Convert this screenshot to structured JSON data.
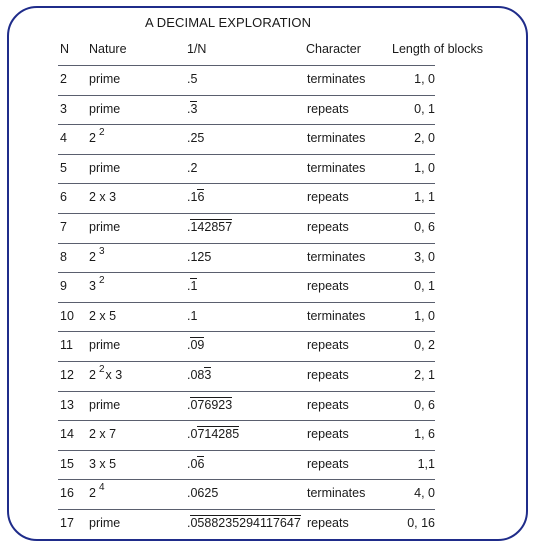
{
  "title": "A DECIMAL EXPLORATION",
  "headers": {
    "n": "N",
    "nature": "Nature",
    "inv": "1/N",
    "character": "Character",
    "length": "Length of blocks"
  },
  "rows": [
    {
      "n": "2",
      "nature": [
        {
          "t": "prime"
        }
      ],
      "inv_plain": ".",
      "inv_rep": "",
      "inv_tail": "5",
      "character": "terminates",
      "length": "1, 0"
    },
    {
      "n": "3",
      "nature": [
        {
          "t": "prime"
        }
      ],
      "inv_plain": ".",
      "inv_rep": "3",
      "inv_tail": "",
      "character": "repeats",
      "length": "0, 1"
    },
    {
      "n": "4",
      "nature": [
        {
          "t": "2"
        },
        {
          "sup": "2"
        }
      ],
      "inv_plain": ".25",
      "inv_rep": "",
      "inv_tail": "",
      "character": "terminates",
      "length": "2, 0"
    },
    {
      "n": "5",
      "nature": [
        {
          "t": "prime"
        }
      ],
      "inv_plain": ".2",
      "inv_rep": "",
      "inv_tail": "",
      "character": "terminates",
      "length": "1, 0"
    },
    {
      "n": "6",
      "nature": [
        {
          "t": "2 x 3"
        }
      ],
      "inv_plain": ".1",
      "inv_rep": "6",
      "inv_tail": "",
      "character": "repeats",
      "length": "1, 1"
    },
    {
      "n": "7",
      "nature": [
        {
          "t": "prime"
        }
      ],
      "inv_plain": ".",
      "inv_rep": "142857",
      "inv_tail": "",
      "character": "repeats",
      "length": "0, 6"
    },
    {
      "n": "8",
      "nature": [
        {
          "t": "2"
        },
        {
          "sup": "3"
        }
      ],
      "inv_plain": ".125",
      "inv_rep": "",
      "inv_tail": "",
      "character": "terminates",
      "length": "3, 0"
    },
    {
      "n": "9",
      "nature": [
        {
          "t": "3"
        },
        {
          "sup": "2"
        }
      ],
      "inv_plain": ".",
      "inv_rep": "1",
      "inv_tail": "",
      "character": "repeats",
      "length": "0, 1"
    },
    {
      "n": "10",
      "nature": [
        {
          "t": "2 x 5"
        }
      ],
      "inv_plain": ".1",
      "inv_rep": "",
      "inv_tail": "",
      "character": "terminates",
      "length": "1, 0"
    },
    {
      "n": "11",
      "nature": [
        {
          "t": "prime"
        }
      ],
      "inv_plain": ".",
      "inv_rep": "09",
      "inv_tail": "",
      "character": "repeats",
      "length": "0, 2"
    },
    {
      "n": "12",
      "nature": [
        {
          "t": "2"
        },
        {
          "sup": "2"
        },
        {
          "t": "x 3"
        }
      ],
      "inv_plain": ".08",
      "inv_rep": "3",
      "inv_tail": "",
      "character": "repeats",
      "length": "2, 1"
    },
    {
      "n": "13",
      "nature": [
        {
          "t": "prime"
        }
      ],
      "inv_plain": ".",
      "inv_rep": "076923",
      "inv_tail": "",
      "character": "repeats",
      "length": "0, 6"
    },
    {
      "n": "14",
      "nature": [
        {
          "t": "2 x 7"
        }
      ],
      "inv_plain": ".0",
      "inv_rep": "714285",
      "inv_tail": "",
      "character": "repeats",
      "length": "1, 6"
    },
    {
      "n": "15",
      "nature": [
        {
          "t": "3 x 5"
        }
      ],
      "inv_plain": ".0",
      "inv_rep": "6",
      "inv_tail": "",
      "character": "repeats",
      "length": "1,1"
    },
    {
      "n": "16",
      "nature": [
        {
          "t": "2"
        },
        {
          "sup": "4"
        }
      ],
      "inv_plain": ".0625",
      "inv_rep": "",
      "inv_tail": "",
      "character": "terminates",
      "length": "4, 0"
    },
    {
      "n": "17",
      "nature": [
        {
          "t": "prime"
        }
      ],
      "inv_plain": ".",
      "inv_rep": "0588235294117647",
      "inv_tail": "",
      "character": "repeats",
      "length": "0, 16"
    }
  ]
}
